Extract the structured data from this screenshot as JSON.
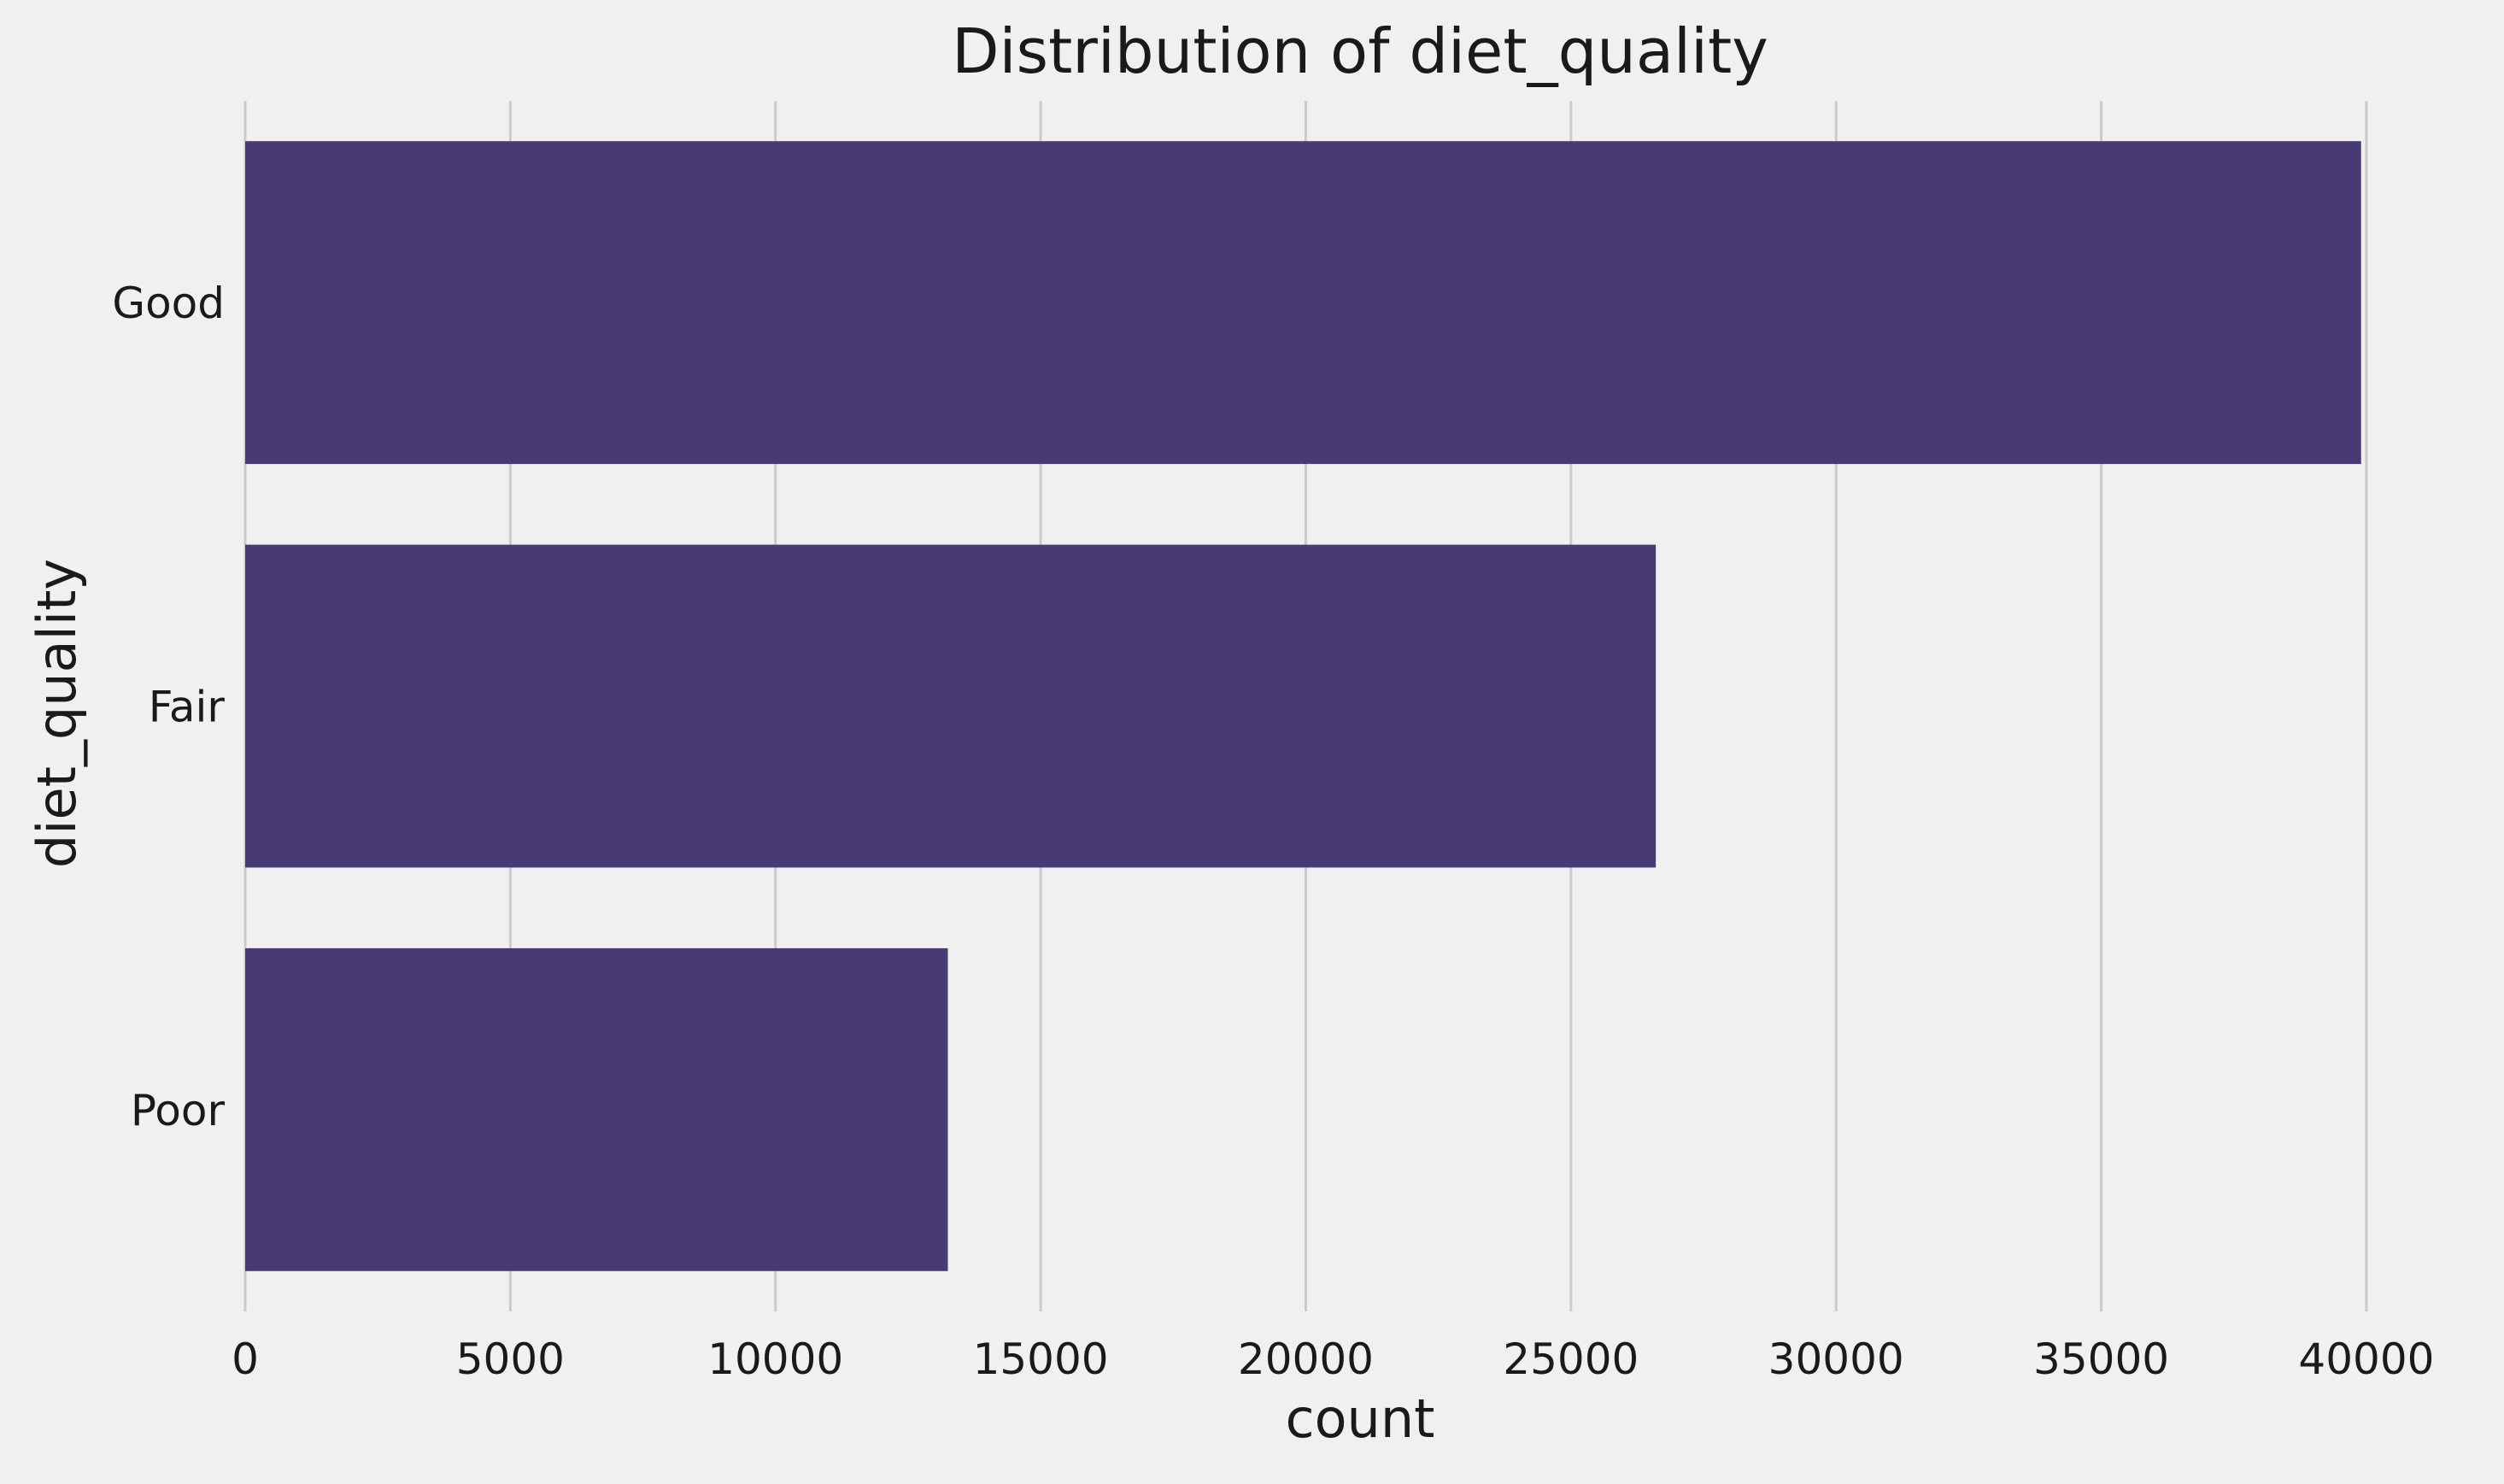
{
  "chart_data": {
    "type": "bar",
    "orientation": "horizontal",
    "title": "Distribution of diet_quality",
    "xlabel": "count",
    "ylabel": "diet_quality",
    "categories": [
      "Good",
      "Fair",
      "Poor"
    ],
    "values": [
      39900,
      26600,
      13250
    ],
    "xlim": [
      0,
      41000
    ],
    "xticks": [
      0,
      5000,
      10000,
      15000,
      20000,
      25000,
      30000,
      35000,
      40000
    ],
    "xtick_labels": [
      "0",
      "5000",
      "10000",
      "15000",
      "20000",
      "25000",
      "30000",
      "35000",
      "40000"
    ],
    "grid": "vertical",
    "bar_color": "#483a75",
    "background_color": "#f0f0f0",
    "grid_color": "#cbcbcb"
  }
}
